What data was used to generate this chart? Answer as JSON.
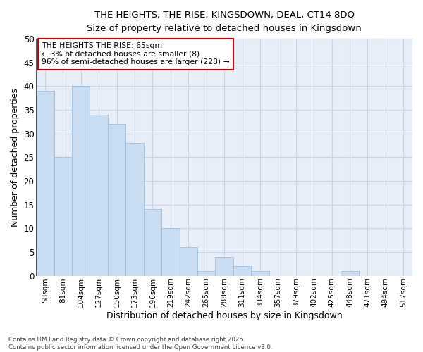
{
  "title_line1": "THE HEIGHTS, THE RISE, KINGSDOWN, DEAL, CT14 8DQ",
  "title_line2": "Size of property relative to detached houses in Kingsdown",
  "xlabel": "Distribution of detached houses by size in Kingsdown",
  "ylabel": "Number of detached properties",
  "categories": [
    "58sqm",
    "81sqm",
    "104sqm",
    "127sqm",
    "150sqm",
    "173sqm",
    "196sqm",
    "219sqm",
    "242sqm",
    "265sqm",
    "288sqm",
    "311sqm",
    "334sqm",
    "357sqm",
    "379sqm",
    "402sqm",
    "425sqm",
    "448sqm",
    "471sqm",
    "494sqm",
    "517sqm"
  ],
  "values": [
    39,
    25,
    40,
    34,
    32,
    28,
    14,
    10,
    6,
    1,
    4,
    2,
    1,
    0,
    0,
    0,
    0,
    1,
    0,
    0,
    0
  ],
  "bar_color": "#c9ddf2",
  "bar_edge_color": "#a0bedd",
  "highlight_left_edge_color": "#cc0000",
  "annotation_title": "THE HEIGHTS THE RISE: 65sqm",
  "annotation_line2": "← 3% of detached houses are smaller (8)",
  "annotation_line3": "96% of semi-detached houses are larger (228) →",
  "annotation_box_facecolor": "#ffffff",
  "annotation_box_edgecolor": "#cc0000",
  "grid_color": "#c8d4e8",
  "background_color": "#e8eef8",
  "ylim": [
    0,
    50
  ],
  "yticks": [
    0,
    5,
    10,
    15,
    20,
    25,
    30,
    35,
    40,
    45,
    50
  ],
  "footer_line1": "Contains HM Land Registry data © Crown copyright and database right 2025.",
  "footer_line2": "Contains public sector information licensed under the Open Government Licence v3.0."
}
